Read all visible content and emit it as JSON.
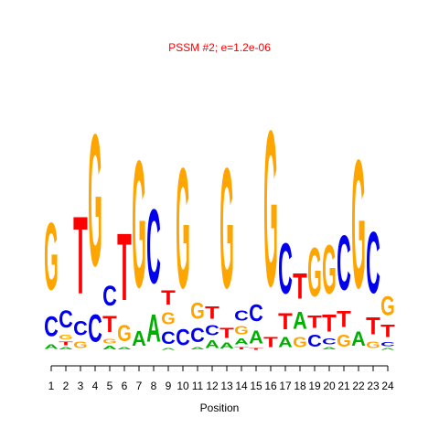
{
  "chart_data": {
    "type": "logo",
    "title": "PSSM #2; e=1.2e-06",
    "x_label": "Position",
    "xticks": [
      1,
      2,
      3,
      4,
      5,
      6,
      7,
      8,
      9,
      10,
      11,
      12,
      13,
      14,
      15,
      16,
      17,
      18,
      19,
      20,
      21,
      22,
      23,
      24
    ],
    "xlim": [
      1,
      24
    ],
    "ylim": [
      0,
      2
    ],
    "colors": {
      "A": "#00b000",
      "C": "#0000ee",
      "G": "#ffa500",
      "T": "#ff0000"
    },
    "positions": [
      {
        "letters": [
          "A",
          "C",
          "G"
        ],
        "values": [
          0.06,
          0.24,
          0.81
        ]
      },
      {
        "letters": [
          "A",
          "T",
          "G",
          "C"
        ],
        "values": [
          0.03,
          0.04,
          0.06,
          0.21
        ]
      },
      {
        "letters": [
          "G",
          "C",
          "T"
        ],
        "values": [
          0.08,
          0.17,
          0.93
        ]
      },
      {
        "letters": [
          "C",
          "G"
        ],
        "values": [
          0.33,
          1.59
        ]
      },
      {
        "letters": [
          "A",
          "G",
          "T",
          "C"
        ],
        "values": [
          0.04,
          0.06,
          0.19,
          0.24
        ]
      },
      {
        "letters": [
          "A",
          "G",
          "T"
        ],
        "values": [
          0.03,
          0.19,
          0.81
        ]
      },
      {
        "letters": [
          "A",
          "G"
        ],
        "values": [
          0.18,
          1.53
        ]
      },
      {
        "letters": [
          "A",
          "C"
        ],
        "values": [
          0.33,
          0.9
        ]
      },
      {
        "letters": [
          "A",
          "C",
          "G",
          "T"
        ],
        "values": [
          0.02,
          0.15,
          0.14,
          0.17
        ]
      },
      {
        "letters": [
          "C",
          "G"
        ],
        "values": [
          0.19,
          1.45
        ]
      },
      {
        "letters": [
          "A",
          "C",
          "G"
        ],
        "values": [
          0.03,
          0.17,
          0.19
        ]
      },
      {
        "letters": [
          "A",
          "C",
          "T"
        ],
        "values": [
          0.09,
          0.12,
          0.15
        ]
      },
      {
        "letters": [
          "A",
          "T",
          "G"
        ],
        "values": [
          0.07,
          0.12,
          1.45
        ]
      },
      {
        "letters": [
          "T",
          "A",
          "G",
          "C"
        ],
        "values": [
          0.03,
          0.07,
          0.1,
          0.12
        ]
      },
      {
        "letters": [
          "T",
          "A",
          "C"
        ],
        "values": [
          0.02,
          0.16,
          0.2
        ]
      },
      {
        "letters": [
          "T",
          "G"
        ],
        "values": [
          0.12,
          1.88
        ]
      },
      {
        "letters": [
          "A",
          "T",
          "C"
        ],
        "values": [
          0.12,
          0.19,
          0.61
        ]
      },
      {
        "letters": [
          "G",
          "A",
          "T"
        ],
        "values": [
          0.12,
          0.21,
          0.31
        ]
      },
      {
        "letters": [
          "C",
          "T",
          "G"
        ],
        "values": [
          0.14,
          0.15,
          0.59
        ]
      },
      {
        "letters": [
          "A",
          "C",
          "T",
          "G"
        ],
        "values": [
          0.03,
          0.07,
          0.21,
          0.59
        ]
      },
      {
        "letters": [
          "G",
          "T",
          "C"
        ],
        "values": [
          0.14,
          0.19,
          0.66
        ]
      },
      {
        "letters": [
          "A",
          "G"
        ],
        "values": [
          0.17,
          1.55
        ]
      },
      {
        "letters": [
          "G",
          "T",
          "C"
        ],
        "values": [
          0.08,
          0.21,
          0.74
        ]
      },
      {
        "letters": [
          "A",
          "C",
          "T",
          "G"
        ],
        "values": [
          0.02,
          0.05,
          0.15,
          0.23
        ]
      }
    ]
  }
}
